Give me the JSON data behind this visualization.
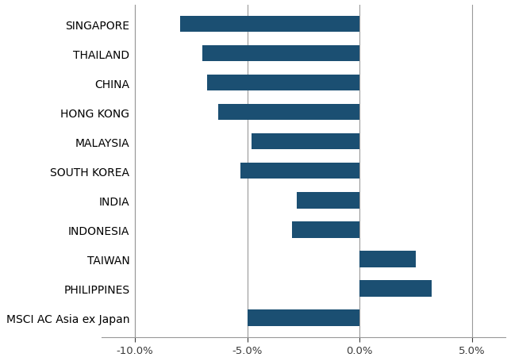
{
  "categories": [
    "MSCI AC Asia ex Japan",
    "PHILIPPINES",
    "TAIWAN",
    "INDONESIA",
    "INDIA",
    "SOUTH KOREA",
    "MALAYSIA",
    "HONG KONG",
    "CHINA",
    "THAILAND",
    "SINGAPORE"
  ],
  "values": [
    -5.0,
    3.2,
    2.5,
    -3.0,
    -2.8,
    -5.3,
    -4.8,
    -6.3,
    -6.8,
    -7.0,
    -8.0
  ],
  "bar_color": "#1b4f72",
  "xlim": [
    -11.5,
    6.5
  ],
  "xticks": [
    -10.0,
    -5.0,
    0.0,
    5.0
  ],
  "xticklabels": [
    "-10.0%",
    "-5.0%",
    "0.0%",
    "5.0%"
  ],
  "background_color": "#ffffff",
  "grid_color": "#999999",
  "text_color": "#3a3a3a",
  "label_fontsize": 9.5,
  "tick_fontsize": 9.5,
  "bar_height": 0.55
}
